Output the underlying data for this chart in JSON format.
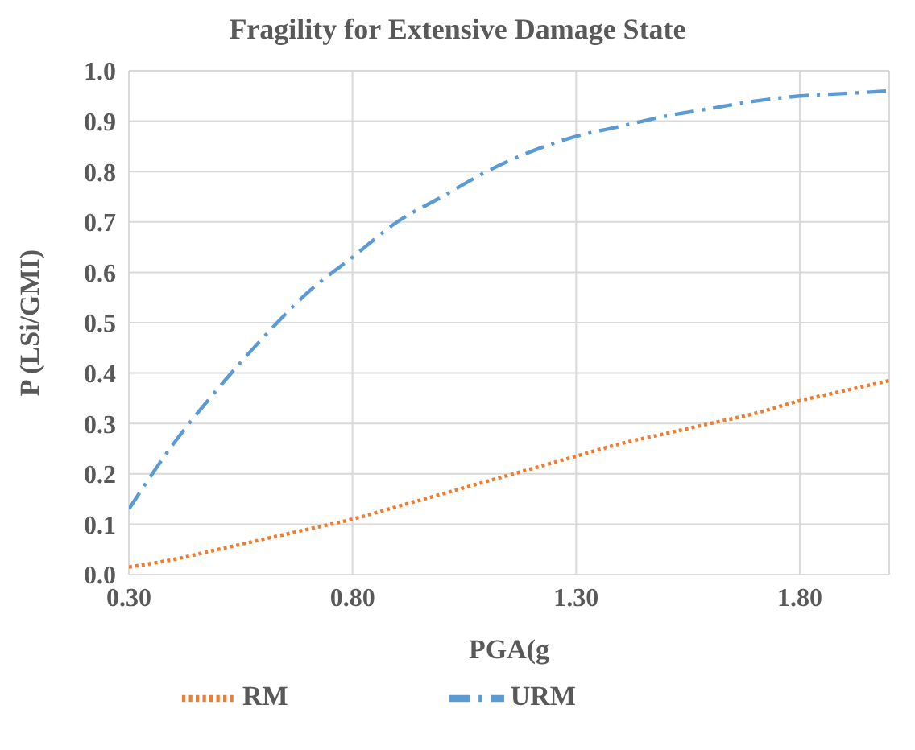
{
  "chart_data": {
    "type": "line",
    "title": "Fragility for Extensive Damage State",
    "xlabel": "PGA(g",
    "ylabel": "P (LSi/GMI)",
    "x": [
      0.3,
      0.4,
      0.5,
      0.6,
      0.7,
      0.8,
      0.9,
      1.0,
      1.1,
      1.2,
      1.3,
      1.4,
      1.5,
      1.6,
      1.7,
      1.8,
      1.9,
      2.0
    ],
    "series": [
      {
        "name": "URM",
        "color": "#5b9bd5",
        "line_style": "dashed",
        "values": [
          0.13,
          0.26,
          0.37,
          0.47,
          0.56,
          0.63,
          0.7,
          0.75,
          0.8,
          0.84,
          0.87,
          0.89,
          0.91,
          0.925,
          0.94,
          0.95,
          0.955,
          0.96
        ]
      },
      {
        "name": "RM",
        "color": "#ed7d31",
        "line_style": "dotted",
        "values": [
          0.015,
          0.03,
          0.05,
          0.07,
          0.09,
          0.11,
          0.135,
          0.16,
          0.185,
          0.21,
          0.235,
          0.26,
          0.28,
          0.3,
          0.32,
          0.345,
          0.365,
          0.385
        ]
      }
    ],
    "xlim": [
      0.3,
      2.0
    ],
    "xticks": [
      {
        "value": 0.3,
        "label": "0.30"
      },
      {
        "value": 0.8,
        "label": "0.80"
      },
      {
        "value": 1.3,
        "label": "1.30"
      },
      {
        "value": 1.8,
        "label": "1.80"
      }
    ],
    "ylim": [
      0,
      1
    ],
    "yticks": [
      {
        "value": 0,
        "label": "0.0"
      },
      {
        "value": 0.1,
        "label": "0.1"
      },
      {
        "value": 0.2,
        "label": "0.2"
      },
      {
        "value": 0.3,
        "label": "0.3"
      },
      {
        "value": 0.4,
        "label": "0.4"
      },
      {
        "value": 0.5,
        "label": "0.5"
      },
      {
        "value": 0.6,
        "label": "0.6"
      },
      {
        "value": 0.7,
        "label": "0.7"
      },
      {
        "value": 0.8,
        "label": "0.8"
      },
      {
        "value": 0.9,
        "label": "0.9"
      },
      {
        "value": 1,
        "label": "1.0"
      }
    ],
    "grid": true,
    "legend": "bottom",
    "marker": "none"
  }
}
